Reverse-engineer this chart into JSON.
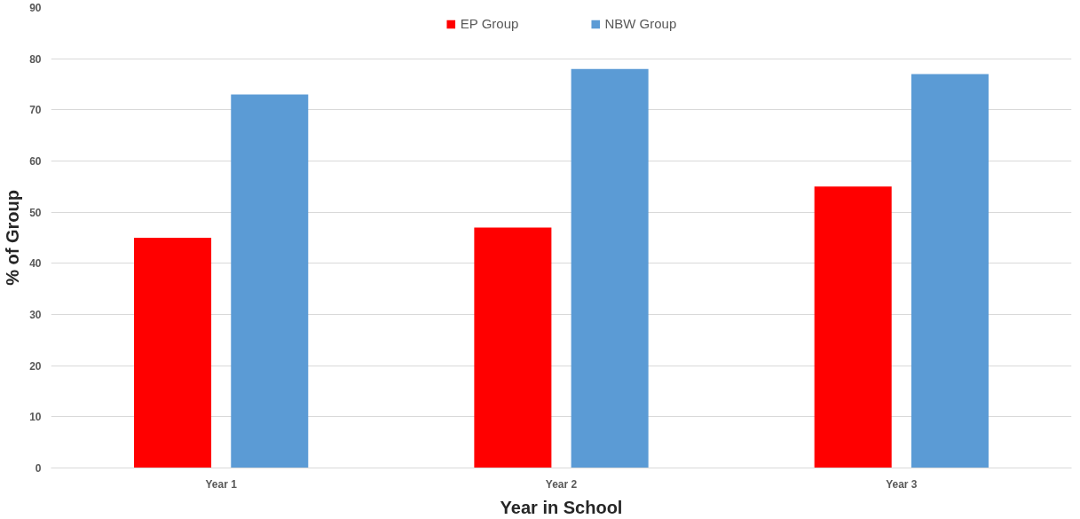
{
  "chart_data": {
    "type": "bar",
    "xlabel": "Year in School",
    "ylabel": "% of Group",
    "categories": [
      "Year 1",
      "Year 2",
      "Year 3"
    ],
    "series": [
      {
        "name": "EP Group",
        "color": "#ff0000",
        "values": [
          45,
          47,
          55
        ]
      },
      {
        "name": "NBW Group",
        "color": "#5b9bd5",
        "values": [
          73,
          78,
          77
        ]
      }
    ],
    "ylim": [
      0,
      90
    ],
    "yticks": [
      0,
      10,
      20,
      30,
      40,
      50,
      60,
      70,
      80,
      90
    ],
    "grid": "y",
    "legend": "top"
  }
}
